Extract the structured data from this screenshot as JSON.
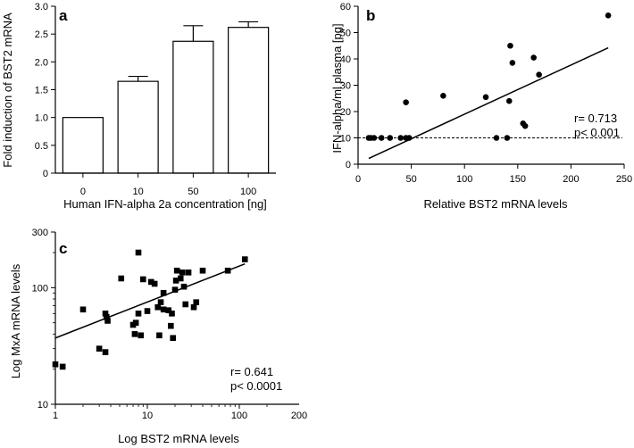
{
  "chart_data": [
    {
      "panel": "a",
      "type": "bar",
      "panel_label": "a",
      "xlabel": "Human IFN-alpha 2a concentration [ng]",
      "ylabel": "Fold induction of BST2 mRNA",
      "categories": [
        "0",
        "10",
        "50",
        "100"
      ],
      "values": [
        1.0,
        1.65,
        2.37,
        2.62
      ],
      "errors": [
        0.0,
        0.09,
        0.28,
        0.1
      ],
      "ylim": [
        0,
        3.0
      ],
      "yticks": [
        "0",
        "0.5",
        "1.0",
        "1.5",
        "2.0",
        "2.5",
        "3.0"
      ],
      "grid": false
    },
    {
      "panel": "b",
      "type": "scatter",
      "panel_label": "b",
      "xlabel": "Relative BST2 mRNA levels",
      "ylabel": "IFN-alpha/ml plasma [pg]",
      "xlim": [
        0,
        250
      ],
      "ylim": [
        0,
        60
      ],
      "xticks": [
        "0",
        "50",
        "100",
        "150",
        "200",
        "250"
      ],
      "yticks": [
        "0",
        "10",
        "20",
        "30",
        "40",
        "50",
        "60"
      ],
      "x": [
        10,
        12,
        15,
        22,
        30,
        40,
        45,
        48,
        45,
        80,
        120,
        130,
        140,
        142,
        143,
        145,
        155,
        157,
        165,
        170,
        235
      ],
      "y": [
        10,
        10,
        10,
        10,
        10,
        10,
        10,
        10,
        23.5,
        26,
        25.5,
        10,
        10,
        24,
        45,
        38.5,
        15.5,
        14.5,
        40.5,
        34,
        56.5
      ],
      "fit_line": {
        "x": [
          10,
          235
        ],
        "y": [
          2.2,
          44.2
        ]
      },
      "reference_line_y": 10,
      "annotations": [
        "r= 0.713",
        "p< 0.001"
      ],
      "grid": false
    },
    {
      "panel": "c",
      "type": "scatter",
      "panel_label": "c",
      "xlabel": "Log BST2 mRNA levels",
      "ylabel": "Log MxA mRNA levels",
      "xscale": "log",
      "yscale": "log",
      "xlim": [
        1,
        200
      ],
      "ylim": [
        10,
        300
      ],
      "xticks": [
        "1",
        "10",
        "100",
        "200"
      ],
      "yticks": [
        "10",
        "100",
        "300"
      ],
      "x": [
        1.0,
        1.2,
        2.0,
        3.0,
        3.5,
        3.6,
        3.7,
        3.5,
        5.2,
        7.0,
        7.3,
        7.5,
        8.0,
        8.0,
        8.5,
        9.0,
        10.0,
        11.0,
        12.0,
        13.0,
        13.5,
        14.0,
        15.0,
        15.0,
        17.0,
        18.0,
        18.5,
        19.0,
        20.0,
        20.5,
        21.0,
        23.0,
        24.0,
        25.0,
        26.0,
        28.0,
        32.0,
        34.0,
        40.0,
        75.0,
        115.0
      ],
      "y": [
        22.0,
        21.0,
        65.0,
        30.0,
        60.0,
        56.0,
        52.0,
        28.0,
        120.0,
        48.0,
        40.0,
        50.0,
        60.0,
        200.0,
        39.0,
        118.0,
        63.0,
        112.0,
        108.0,
        68.0,
        39.0,
        75.0,
        90.0,
        65.0,
        64.0,
        47.0,
        60.0,
        37.0,
        96.0,
        115.0,
        140.0,
        120.0,
        135.0,
        102.0,
        72.0,
        135.0,
        68.0,
        75.0,
        140.0,
        140.0,
        175.0
      ],
      "fit_line": {
        "x": [
          1,
          115
        ],
        "y": [
          37.0,
          160.0
        ]
      },
      "annotations": [
        "r= 0.641",
        "p< 0.0001"
      ],
      "grid": false
    }
  ]
}
